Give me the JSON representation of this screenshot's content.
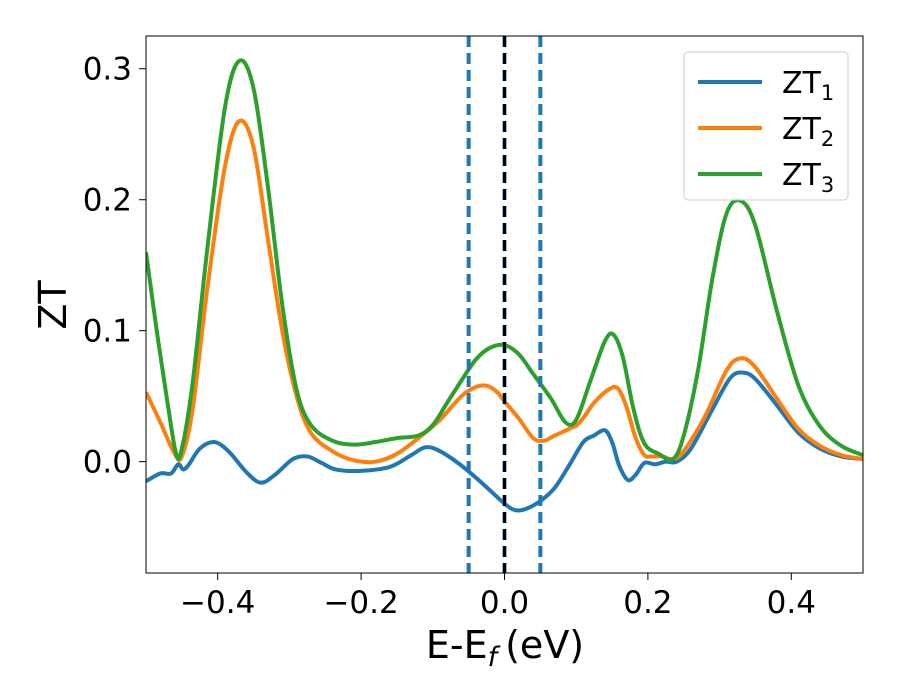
{
  "chart_data": {
    "type": "line",
    "xlabel": "E-E",
    "xlabel_sub": "f",
    "xlabel_unit": "(eV)",
    "ylabel": "ZT",
    "xlim": [
      -0.5,
      0.5
    ],
    "ylim": [
      -0.085,
      0.325
    ],
    "x_ticks": [
      {
        "value": -0.4,
        "label": "−0.4"
      },
      {
        "value": -0.2,
        "label": "−0.2"
      },
      {
        "value": 0.0,
        "label": "0.0"
      },
      {
        "value": 0.2,
        "label": "0.2"
      },
      {
        "value": 0.4,
        "label": "0.4"
      }
    ],
    "y_ticks": [
      {
        "value": 0.0,
        "label": "0.0"
      },
      {
        "value": 0.1,
        "label": "0.1"
      },
      {
        "value": 0.2,
        "label": "0.2"
      },
      {
        "value": 0.3,
        "label": "0.3"
      }
    ],
    "grid": false,
    "legend_position": "top-right",
    "vertical_lines": [
      {
        "x": -0.05,
        "style": "dashed",
        "color": "#1f77b4"
      },
      {
        "x": 0.0,
        "style": "dashed",
        "color": "#1f77b4"
      },
      {
        "x": 0.05,
        "style": "dashed",
        "color": "#1f77b4"
      },
      {
        "x": 0.0,
        "style": "dashed",
        "color": "#000000"
      }
    ],
    "series": [
      {
        "name": "ZT",
        "name_sub": "1",
        "color": "#1f77b4",
        "points": [
          [
            -0.5,
            -0.015
          ],
          [
            -0.48,
            -0.009
          ],
          [
            -0.465,
            -0.009
          ],
          [
            -0.455,
            -0.002
          ],
          [
            -0.448,
            -0.006
          ],
          [
            -0.44,
            -0.002
          ],
          [
            -0.425,
            0.01
          ],
          [
            -0.405,
            0.015
          ],
          [
            -0.385,
            0.008
          ],
          [
            -0.36,
            -0.008
          ],
          [
            -0.34,
            -0.016
          ],
          [
            -0.32,
            -0.01
          ],
          [
            -0.295,
            0.002
          ],
          [
            -0.275,
            0.004
          ],
          [
            -0.255,
            -0.001
          ],
          [
            -0.235,
            -0.006
          ],
          [
            -0.2,
            -0.007
          ],
          [
            -0.16,
            -0.004
          ],
          [
            -0.13,
            0.005
          ],
          [
            -0.11,
            0.011
          ],
          [
            -0.09,
            0.008
          ],
          [
            -0.06,
            -0.003
          ],
          [
            -0.03,
            -0.017
          ],
          [
            0.0,
            -0.032
          ],
          [
            0.015,
            -0.037
          ],
          [
            0.03,
            -0.036
          ],
          [
            0.05,
            -0.03
          ],
          [
            0.07,
            -0.02
          ],
          [
            0.09,
            -0.003
          ],
          [
            0.11,
            0.015
          ],
          [
            0.125,
            0.02
          ],
          [
            0.14,
            0.024
          ],
          [
            0.15,
            0.015
          ],
          [
            0.16,
            -0.003
          ],
          [
            0.172,
            -0.014
          ],
          [
            0.183,
            -0.01
          ],
          [
            0.195,
            -0.001
          ],
          [
            0.21,
            -0.002
          ],
          [
            0.225,
            0.0
          ],
          [
            0.24,
            0.0
          ],
          [
            0.26,
            0.01
          ],
          [
            0.29,
            0.04
          ],
          [
            0.315,
            0.064
          ],
          [
            0.333,
            0.068
          ],
          [
            0.35,
            0.063
          ],
          [
            0.38,
            0.043
          ],
          [
            0.41,
            0.022
          ],
          [
            0.44,
            0.01
          ],
          [
            0.47,
            0.004
          ],
          [
            0.5,
            0.002
          ]
        ]
      },
      {
        "name": "ZT",
        "name_sub": "2",
        "color": "#ff7f0e",
        "points": [
          [
            -0.5,
            0.053
          ],
          [
            -0.48,
            0.03
          ],
          [
            -0.46,
            0.006
          ],
          [
            -0.45,
            0.004
          ],
          [
            -0.435,
            0.04
          ],
          [
            -0.415,
            0.13
          ],
          [
            -0.39,
            0.225
          ],
          [
            -0.37,
            0.26
          ],
          [
            -0.35,
            0.24
          ],
          [
            -0.33,
            0.17
          ],
          [
            -0.31,
            0.1
          ],
          [
            -0.29,
            0.05
          ],
          [
            -0.27,
            0.022
          ],
          [
            -0.24,
            0.008
          ],
          [
            -0.21,
            0.001
          ],
          [
            -0.18,
            0.0
          ],
          [
            -0.15,
            0.006
          ],
          [
            -0.12,
            0.018
          ],
          [
            -0.09,
            0.032
          ],
          [
            -0.06,
            0.05
          ],
          [
            -0.04,
            0.057
          ],
          [
            -0.025,
            0.058
          ],
          [
            -0.01,
            0.053
          ],
          [
            0.0,
            0.046
          ],
          [
            0.02,
            0.033
          ],
          [
            0.04,
            0.018
          ],
          [
            0.055,
            0.016
          ],
          [
            0.07,
            0.02
          ],
          [
            0.09,
            0.025
          ],
          [
            0.105,
            0.03
          ],
          [
            0.125,
            0.045
          ],
          [
            0.145,
            0.055
          ],
          [
            0.158,
            0.056
          ],
          [
            0.17,
            0.042
          ],
          [
            0.183,
            0.018
          ],
          [
            0.195,
            0.005
          ],
          [
            0.205,
            0.004
          ],
          [
            0.22,
            0.004
          ],
          [
            0.235,
            0.002
          ],
          [
            0.25,
            0.008
          ],
          [
            0.28,
            0.035
          ],
          [
            0.31,
            0.07
          ],
          [
            0.33,
            0.079
          ],
          [
            0.35,
            0.072
          ],
          [
            0.38,
            0.048
          ],
          [
            0.41,
            0.025
          ],
          [
            0.44,
            0.012
          ],
          [
            0.47,
            0.005
          ],
          [
            0.5,
            0.002
          ]
        ]
      },
      {
        "name": "ZT",
        "name_sub": "3",
        "color": "#2ca02c",
        "points": [
          [
            -0.5,
            0.16
          ],
          [
            -0.485,
            0.1
          ],
          [
            -0.47,
            0.045
          ],
          [
            -0.458,
            0.006
          ],
          [
            -0.45,
            0.01
          ],
          [
            -0.435,
            0.06
          ],
          [
            -0.415,
            0.16
          ],
          [
            -0.39,
            0.27
          ],
          [
            -0.37,
            0.306
          ],
          [
            -0.35,
            0.285
          ],
          [
            -0.33,
            0.21
          ],
          [
            -0.31,
            0.12
          ],
          [
            -0.29,
            0.055
          ],
          [
            -0.27,
            0.028
          ],
          [
            -0.24,
            0.016
          ],
          [
            -0.21,
            0.013
          ],
          [
            -0.18,
            0.015
          ],
          [
            -0.15,
            0.018
          ],
          [
            -0.12,
            0.02
          ],
          [
            -0.1,
            0.028
          ],
          [
            -0.08,
            0.045
          ],
          [
            -0.06,
            0.062
          ],
          [
            -0.04,
            0.078
          ],
          [
            -0.02,
            0.087
          ],
          [
            0.0,
            0.089
          ],
          [
            0.02,
            0.082
          ],
          [
            0.04,
            0.067
          ],
          [
            0.065,
            0.048
          ],
          [
            0.085,
            0.03
          ],
          [
            0.1,
            0.032
          ],
          [
            0.12,
            0.062
          ],
          [
            0.14,
            0.092
          ],
          [
            0.152,
            0.097
          ],
          [
            0.165,
            0.08
          ],
          [
            0.18,
            0.04
          ],
          [
            0.195,
            0.014
          ],
          [
            0.215,
            0.006
          ],
          [
            0.235,
            0.002
          ],
          [
            0.25,
            0.02
          ],
          [
            0.27,
            0.07
          ],
          [
            0.29,
            0.14
          ],
          [
            0.31,
            0.19
          ],
          [
            0.33,
            0.199
          ],
          [
            0.35,
            0.18
          ],
          [
            0.38,
            0.115
          ],
          [
            0.41,
            0.058
          ],
          [
            0.44,
            0.027
          ],
          [
            0.47,
            0.012
          ],
          [
            0.5,
            0.005
          ]
        ]
      }
    ]
  }
}
